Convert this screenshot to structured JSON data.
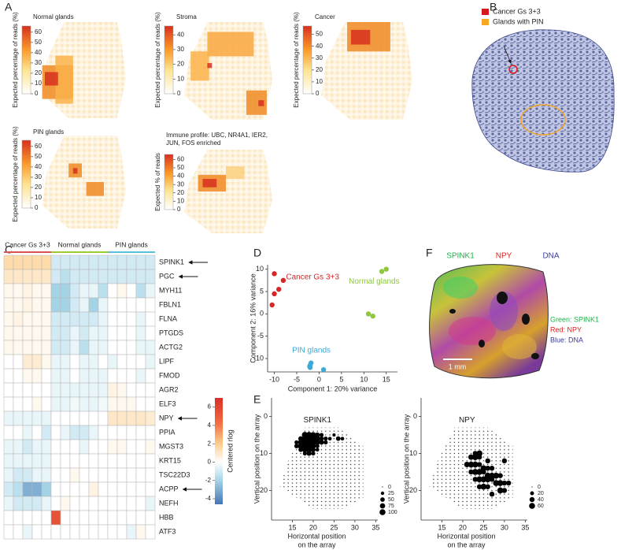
{
  "panel_labels": [
    "A",
    "B",
    "C",
    "D",
    "E",
    "F"
  ],
  "chart_data": [
    {
      "type": "spatial-map",
      "title": "Normal glands",
      "ylabel": "Expected percentage of reads (%)",
      "clim": [
        0,
        66
      ],
      "cticks": [
        0,
        10,
        20,
        30,
        40,
        50,
        60
      ]
    },
    {
      "type": "spatial-map",
      "title": "Stroma",
      "ylabel": "Expected percentage of reads (%)",
      "clim": [
        0,
        46
      ],
      "cticks": [
        0,
        10,
        20,
        30,
        40
      ]
    },
    {
      "type": "spatial-map",
      "title": "Cancer",
      "ylabel": "Expected percentage of reads (%)",
      "clim": [
        0,
        57
      ],
      "cticks": [
        0,
        10,
        20,
        30,
        40,
        50
      ]
    },
    {
      "type": "spatial-map",
      "title": "PIN glands",
      "ylabel": "Expected percentage of reads (%)",
      "clim": [
        0,
        66
      ],
      "cticks": [
        0,
        10,
        20,
        30,
        40,
        50,
        60
      ]
    },
    {
      "type": "spatial-map",
      "title": [
        "Immune profile: UBC, NR4A1, IER2,",
        "JUN, FOS enriched"
      ],
      "ylabel": "Expected % of reads",
      "clim": [
        0,
        66
      ],
      "cticks": [
        0,
        10,
        20,
        30,
        40,
        50,
        60
      ]
    },
    {
      "type": "heatmap",
      "categories": [
        "SPINK1",
        "PGC",
        "MYH11",
        "FBLN1",
        "FLNA",
        "PTGDS",
        "ACTG2",
        "LIPF",
        "FMOD",
        "AGR2",
        "ELF3",
        "NPY",
        "PPIA",
        "MGST3",
        "KRT15",
        "TSC22D3",
        "ACPP",
        "NEFH",
        "HBB",
        "ATF3"
      ],
      "highlight": [
        "SPINK1",
        "PGC",
        "NPY",
        "ACPP"
      ],
      "series": [
        {
          "name": "Cancer Gs 3+3",
          "color": "#d9534f",
          "values": [
            [
              1.5,
              1.5,
              1.5,
              1.5,
              1.5
            ],
            [
              1,
              1,
              1,
              1,
              1
            ],
            [
              0.3,
              0.3,
              0.5,
              0.3,
              0.3
            ],
            [
              0.3,
              0.3,
              0.5,
              0.3,
              0.3
            ],
            [
              0.3,
              0.5,
              0.3,
              0.3,
              0.3
            ],
            [
              0.3,
              0.3,
              0.3,
              0.3,
              0.3
            ],
            [
              0.3,
              0.3,
              0.3,
              0.3,
              0.3
            ],
            [
              0,
              0,
              0.8,
              0.8,
              0.3
            ],
            [
              0,
              0,
              0.3,
              0.3,
              0
            ],
            [
              0,
              0,
              0,
              0,
              0
            ],
            [
              0,
              0,
              0,
              0.3,
              0
            ],
            [
              -0.5,
              -0.5,
              -0.5,
              -0.5,
              -0.5
            ],
            [
              0,
              0,
              -0.5,
              0,
              -1
            ],
            [
              -0.5,
              -0.5,
              -1,
              -0.5,
              -0.5
            ],
            [
              -0.5,
              -0.5,
              -0.5,
              -0.5,
              -0.5
            ],
            [
              -0.5,
              -1,
              -1,
              -0.5,
              -0.5
            ],
            [
              -1,
              -1.5,
              -3,
              -3,
              -2
            ],
            [
              -0.5,
              -1,
              -1,
              -1,
              -0.5
            ],
            [
              0,
              0,
              0,
              0,
              0
            ],
            [
              0,
              0,
              -0.5,
              0,
              0
            ]
          ]
        },
        {
          "name": "Normal glands",
          "color": "#9acd32",
          "values": [
            [
              -1,
              -1,
              -1,
              -1,
              -1,
              -1
            ],
            [
              -1,
              -1.5,
              -1,
              -1,
              -1,
              -1
            ],
            [
              -2,
              -2,
              -1,
              -0.5,
              -0.5,
              -1.5
            ],
            [
              -2,
              -2,
              -1,
              -0.5,
              -2,
              -0.5
            ],
            [
              -1,
              -1,
              -1,
              -1,
              -1,
              -0.5
            ],
            [
              -1,
              -1,
              -0.5,
              -1,
              -0.5,
              -0.5
            ],
            [
              -1,
              -1,
              -0.5,
              -1.5,
              -0.5,
              -0.5
            ],
            [
              -0.5,
              -0.5,
              0,
              -0.5,
              -0.5,
              0
            ],
            [
              -0.5,
              -0.5,
              0,
              -0.5,
              -0.5,
              -0.5
            ],
            [
              -0.5,
              -0.5,
              -0.5,
              -0.5,
              -0.5,
              -0.5
            ],
            [
              -0.5,
              -0.5,
              -0.3,
              -0.5,
              -0.5,
              -0.3
            ],
            [
              0,
              0,
              0,
              0,
              0,
              0
            ],
            [
              0,
              -0.5,
              -1,
              -1,
              -0.5,
              0
            ],
            [
              0,
              0,
              0,
              -0.5,
              0,
              0
            ],
            [
              0,
              0,
              0,
              0,
              0,
              0
            ],
            [
              0,
              0,
              0.3,
              0,
              0,
              0
            ],
            [
              0,
              0,
              0,
              0,
              0.5,
              0
            ],
            [
              0,
              0.3,
              0,
              0,
              0,
              0
            ],
            [
              5.5,
              0,
              0,
              0,
              0,
              0
            ],
            [
              0,
              0,
              0,
              0,
              0,
              0
            ]
          ]
        },
        {
          "name": "PIN glands",
          "color": "#5bc0de",
          "values": [
            [
              -1,
              -1,
              -1,
              -1,
              -1
            ],
            [
              -1,
              -1,
              -1,
              -1,
              -1
            ],
            [
              0,
              0.3,
              0,
              -1.5,
              -0.5
            ],
            [
              0,
              0,
              0,
              0,
              0
            ],
            [
              0,
              0,
              0,
              -0.5,
              0
            ],
            [
              0,
              0,
              0,
              -0.5,
              0
            ],
            [
              0,
              0,
              0,
              -0.5,
              -0.5
            ],
            [
              -0.5,
              0,
              0,
              0,
              -0.5
            ],
            [
              0,
              0,
              0,
              -0.5,
              0
            ],
            [
              0.5,
              0.3,
              0,
              0,
              0
            ],
            [
              0.3,
              0.3,
              0.3,
              0,
              0
            ],
            [
              1,
              1,
              1,
              1,
              0.8
            ],
            [
              0,
              0,
              0,
              0,
              0
            ],
            [
              0.3,
              0.3,
              0,
              0,
              0.3
            ],
            [
              0,
              0,
              0,
              0,
              0
            ],
            [
              0,
              0,
              0,
              0,
              0
            ],
            [
              0,
              0,
              0,
              0,
              0
            ],
            [
              0,
              0,
              0,
              0,
              -0.5
            ],
            [
              0,
              0,
              0,
              0,
              0
            ],
            [
              0,
              0,
              -0.5,
              0.3,
              0
            ]
          ]
        }
      ],
      "clim": [
        -4.6,
        7
      ],
      "cticks": [
        -4,
        -2,
        0,
        2,
        4,
        6
      ],
      "clabel": "Centered rlog"
    },
    {
      "type": "scatter",
      "xlabel": "Component 1: 20% variance",
      "ylabel": "Component 2: 16% variance",
      "xlim": [
        -11.5,
        17.5
      ],
      "ylim": [
        -13,
        11
      ],
      "xticks": [
        -10,
        -5,
        0,
        5,
        10,
        15
      ],
      "yticks": [
        -10,
        -5,
        0,
        5,
        10
      ],
      "series": [
        {
          "name": "Cancer Gs 3+3",
          "color": "#d62728",
          "x": [
            -10,
            -8,
            -9,
            -10,
            -10.5
          ],
          "y": [
            9,
            7.5,
            5.5,
            4.5,
            2
          ]
        },
        {
          "name": "Normal glands",
          "color": "#8dc63f",
          "x": [
            14,
            15,
            11,
            12
          ],
          "y": [
            9.5,
            10,
            0,
            -0.5
          ]
        },
        {
          "name": "PIN glands",
          "color": "#3fa9d6",
          "x": [
            -2,
            -2,
            -1.8,
            1,
            -2.1
          ],
          "y": [
            -11.5,
            -12,
            -11,
            -12.5,
            -11.8
          ]
        }
      ]
    },
    {
      "type": "dot-map",
      "title": "SPINK1",
      "xlabel": [
        "Horizontal position",
        "on the array"
      ],
      "ylabel": "Vertical position on the array",
      "xlim": [
        10,
        35.5
      ],
      "ylim": [
        -5,
        28
      ],
      "xticks": [
        15,
        20,
        25,
        30,
        35
      ],
      "yticks": [
        0,
        10,
        20
      ],
      "size_ticks": [
        0,
        25,
        50,
        75,
        100
      ],
      "x": [
        18,
        19,
        20,
        21,
        22,
        25,
        17,
        18,
        19,
        20,
        21,
        22,
        23,
        24,
        26,
        27,
        16,
        17,
        18,
        19,
        20,
        21,
        22,
        23,
        16,
        17,
        18,
        19,
        20,
        21,
        17,
        18,
        19,
        20,
        21,
        18,
        19,
        20
      ],
      "y": [
        5,
        5,
        5,
        5,
        5,
        5,
        6,
        6,
        6,
        6,
        6,
        6,
        6,
        6,
        6,
        6,
        7,
        7,
        7,
        7,
        7,
        7,
        7,
        7,
        8,
        8,
        8,
        8,
        8,
        8,
        9,
        9,
        9,
        9,
        9,
        10,
        10,
        10
      ],
      "size": [
        100,
        100,
        90,
        60,
        40,
        20,
        60,
        100,
        100,
        80,
        90,
        50,
        40,
        30,
        50,
        30,
        40,
        80,
        100,
        90,
        100,
        70,
        60,
        40,
        50,
        90,
        100,
        100,
        80,
        40,
        50,
        80,
        100,
        60,
        30,
        40,
        60,
        40
      ]
    },
    {
      "type": "dot-map",
      "title": "NPY",
      "xlabel": [
        "Horizontal position",
        "on the array"
      ],
      "ylabel": "Vertical position on the array",
      "xlim": [
        10,
        35.5
      ],
      "ylim": [
        -5,
        28
      ],
      "xticks": [
        15,
        20,
        25,
        30,
        35
      ],
      "yticks": [
        0,
        10,
        20
      ],
      "size_ticks": [
        0,
        20,
        40,
        60
      ],
      "x": [
        23,
        24,
        22,
        23,
        24,
        26,
        21,
        22,
        23,
        24,
        25,
        26,
        27,
        22,
        23,
        24,
        25,
        26,
        27,
        28,
        29,
        23,
        24,
        25,
        26,
        27,
        28,
        29,
        30,
        24,
        25,
        26,
        29,
        30,
        27,
        30,
        31
      ],
      "y": [
        10,
        10,
        11,
        11,
        11,
        12,
        13,
        13,
        13,
        13,
        14,
        14,
        14,
        15,
        15,
        15,
        15,
        16,
        16,
        16,
        16,
        17,
        17,
        17,
        17,
        17,
        18,
        18,
        18,
        19,
        19,
        19,
        20,
        20,
        21,
        12,
        18
      ],
      "size": [
        40,
        60,
        50,
        60,
        40,
        40,
        50,
        60,
        60,
        40,
        60,
        40,
        40,
        40,
        60,
        60,
        40,
        60,
        60,
        60,
        40,
        40,
        60,
        60,
        60,
        40,
        60,
        60,
        40,
        40,
        60,
        40,
        60,
        40,
        40,
        40,
        40
      ]
    }
  ],
  "images": {
    "B": {
      "legend": [
        {
          "name": "Cancer Gs 3+3",
          "color": "#d7191c"
        },
        {
          "name": "Glands with PIN",
          "color": "#f5a623"
        }
      ]
    },
    "F": {
      "channels": [
        {
          "name": "SPINK1",
          "color": "#22b14c"
        },
        {
          "name": "NPY",
          "color": "#e02020"
        },
        {
          "name": "DNA",
          "color": "#3a3aa0"
        }
      ],
      "legend": [
        {
          "name": "Green: SPINK1",
          "color": "#22b14c"
        },
        {
          "name": "Red: NPY",
          "color": "#e02020"
        },
        {
          "name": "Blue: DNA",
          "color": "#3a3aa0"
        }
      ],
      "scale_bar": "1 mm"
    }
  }
}
